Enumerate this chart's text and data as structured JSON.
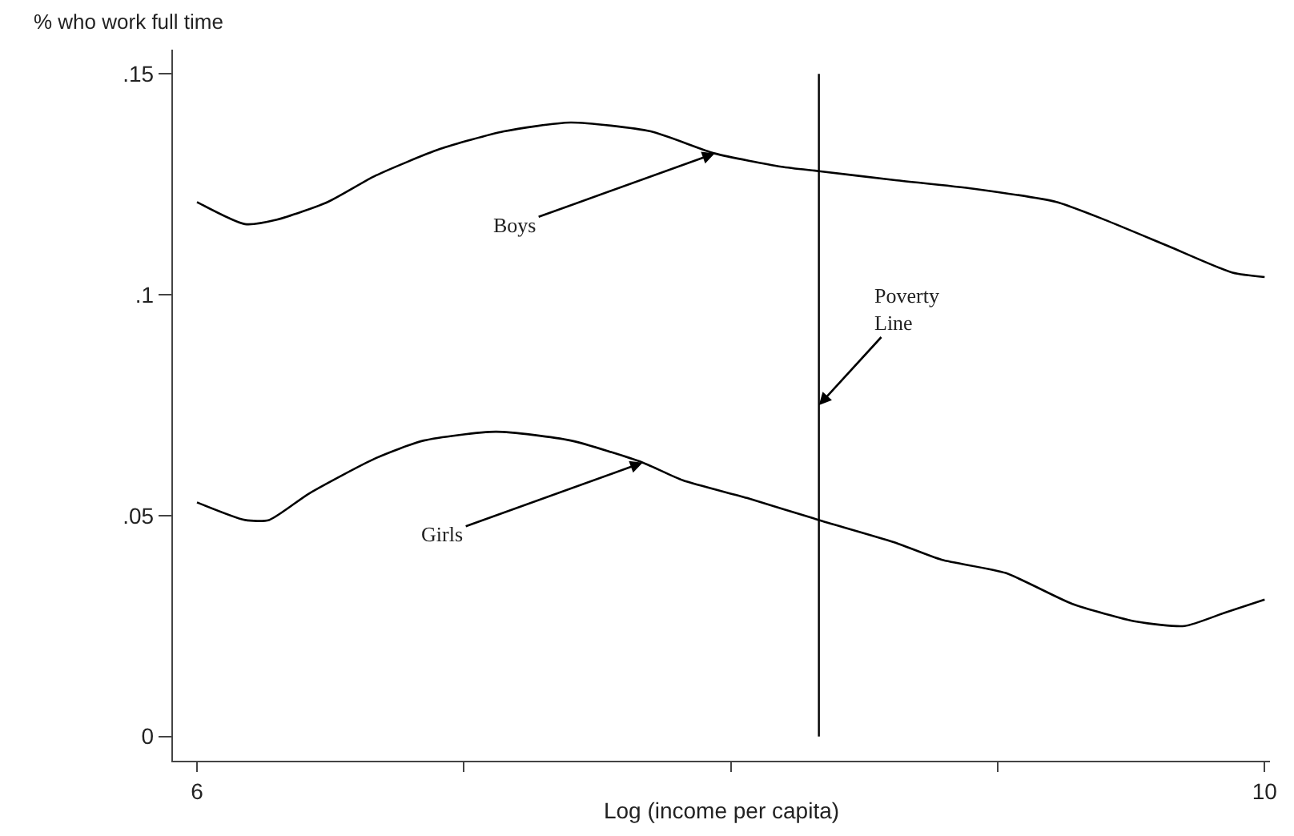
{
  "chart_data": {
    "type": "line",
    "ylabel": "% who work full time",
    "xlabel": "Log (income per capita)",
    "xlim": [
      5.91,
      10.02
    ],
    "ylim": [
      -0.0055,
      0.1555
    ],
    "xticks": [
      6,
      {
        "value": 7,
        "label": null
      },
      {
        "value": 8,
        "label": null
      },
      {
        "value": 9,
        "label": null
      },
      10
    ],
    "yticks": [
      0,
      {
        "value": 0.05,
        "label": ".05"
      },
      {
        "value": 0.1,
        "label": ".1"
      },
      {
        "value": 0.15,
        "label": ".15"
      }
    ],
    "marker": "none",
    "line_style": "solid",
    "series": [
      {
        "color": "#000000",
        "x": [
          6,
          6.18,
          6.3,
          6.49,
          6.67,
          6.91,
          7.15,
          7.4,
          7.7,
          7.94,
          8.19,
          8.33,
          8.61,
          8.91,
          9.22,
          9.4,
          9.64,
          9.88,
          10
        ],
        "values": [
          0.121,
          0.116,
          0.117,
          0.121,
          0.127,
          0.133,
          0.137,
          0.139,
          0.137,
          0.132,
          0.129,
          0.128,
          0.126,
          0.124,
          0.121,
          0.117,
          0.111,
          0.105,
          0.104
        ]
      },
      {
        "color": "#000000",
        "x": [
          6,
          6.18,
          6.27,
          6.42,
          6.67,
          6.85,
          7.12,
          7.4,
          7.67,
          7.82,
          8.06,
          8.33,
          8.61,
          8.79,
          9.03,
          9.28,
          9.52,
          9.7,
          9.85,
          10
        ],
        "values": [
          0.053,
          0.049,
          0.049,
          0.055,
          0.063,
          0.067,
          0.069,
          0.067,
          0.062,
          0.058,
          0.054,
          0.049,
          0.044,
          0.04,
          0.037,
          0.03,
          0.026,
          0.025,
          0.028,
          0.031
        ]
      }
    ],
    "ref_lines": [
      {
        "axis": "x",
        "value": 8.33,
        "label": "Poverty Line",
        "color": "#000000"
      }
    ],
    "annotations": [
      {
        "text": "Boys",
        "x": 7.94,
        "y": 0.132
      },
      {
        "text": "Girls",
        "x": 7.67,
        "y": 0.062
      }
    ]
  }
}
